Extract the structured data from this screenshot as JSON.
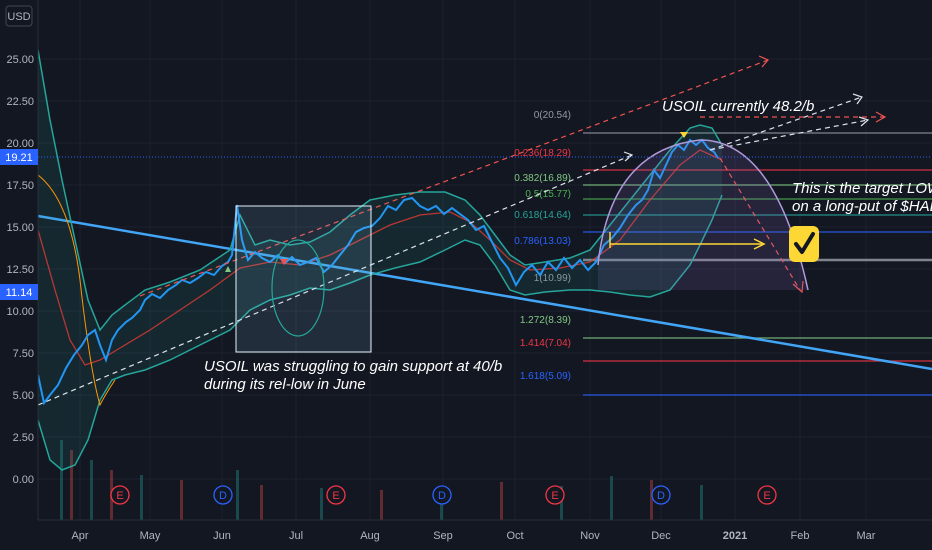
{
  "axis": {
    "currency": "USD",
    "y_ticks": [
      "25.00",
      "22.50",
      "20.00",
      "17.50",
      "15.00",
      "12.50",
      "10.00",
      "7.50",
      "5.00",
      "2.50",
      "0.00"
    ],
    "x_ticks": [
      "Apr",
      "May",
      "Jun",
      "Jul",
      "Aug",
      "Sep",
      "Oct",
      "Nov",
      "Dec",
      "2021",
      "Feb",
      "Mar"
    ],
    "price_tag_top": "19.21",
    "price_tag_bottom": "11.14"
  },
  "fib_levels": [
    {
      "label": "0(20.54)",
      "color": "#9598a1"
    },
    {
      "label": "0.236(18.29)",
      "color": "#f23645"
    },
    {
      "label": "0.382(16.89)",
      "color": "#81c784"
    },
    {
      "label": "0.5(15.77)",
      "color": "#4caf50"
    },
    {
      "label": "0.618(14.64)",
      "color": "#26a69a"
    },
    {
      "label": "0.786(13.03)",
      "color": "#2962ff"
    },
    {
      "label": "1(10.99)",
      "color": "#9598a1"
    },
    {
      "label": "1.272(8.39)",
      "color": "#81c784"
    },
    {
      "label": "1.414(7.04)",
      "color": "#f23645"
    },
    {
      "label": "1.618(5.09)",
      "color": "#2962ff"
    }
  ],
  "annotations": {
    "current": "USOIL currently 48.2/b",
    "support_line1": "USOIL was struggling to gain support at 40/b",
    "support_line2": "during its rel-low in June",
    "target_line1": "This is the target LOW",
    "target_line2": "on a long-put of $HAL"
  },
  "events": [
    {
      "letter": "E",
      "type": "earnings"
    },
    {
      "letter": "D",
      "type": "dividend"
    },
    {
      "letter": "E",
      "type": "earnings"
    },
    {
      "letter": "D",
      "type": "dividend"
    },
    {
      "letter": "E",
      "type": "earnings"
    },
    {
      "letter": "D",
      "type": "dividend"
    },
    {
      "letter": "E",
      "type": "earnings"
    }
  ],
  "colors": {
    "background": "#131722",
    "price": "#2196f3",
    "band": "#26a69a",
    "ma": "#e53935",
    "earnings": "#f23645",
    "dividend": "#2962ff",
    "price_tag": "#2962ff"
  },
  "icons": {
    "checkmark": "checkmark-icon"
  }
}
